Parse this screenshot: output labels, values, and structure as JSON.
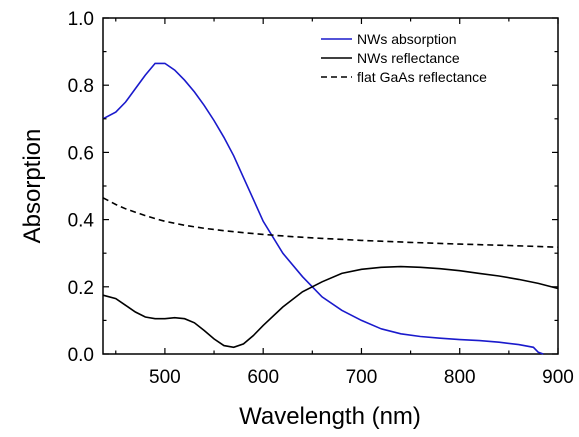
{
  "chart_data": {
    "type": "line",
    "title": "",
    "xlabel": "Wavelength (nm)",
    "ylabel": "Absorption",
    "xlim": [
      437,
      900
    ],
    "ylim": [
      0.0,
      1.0
    ],
    "xticks": [
      500,
      600,
      700,
      800,
      900
    ],
    "xtick_labels": [
      "500",
      "600",
      "700",
      "800",
      "900"
    ],
    "yticks": [
      0.0,
      0.2,
      0.4,
      0.6,
      0.8,
      1.0
    ],
    "ytick_labels": [
      "0.0",
      "0.2",
      "0.4",
      "0.6",
      "0.8",
      "1.0"
    ],
    "grid": false,
    "legend_position": "top-right",
    "series": [
      {
        "name": "NWs absorption",
        "color": "#1a1acc",
        "dash": "solid",
        "x": [
          437,
          450,
          460,
          470,
          480,
          490,
          500,
          510,
          520,
          530,
          540,
          550,
          560,
          570,
          580,
          590,
          600,
          620,
          640,
          660,
          680,
          700,
          720,
          740,
          760,
          780,
          800,
          820,
          840,
          860,
          875,
          880,
          885
        ],
        "y": [
          0.7,
          0.72,
          0.75,
          0.79,
          0.83,
          0.865,
          0.865,
          0.845,
          0.815,
          0.78,
          0.74,
          0.695,
          0.645,
          0.59,
          0.525,
          0.46,
          0.395,
          0.3,
          0.23,
          0.17,
          0.13,
          0.1,
          0.075,
          0.06,
          0.052,
          0.047,
          0.043,
          0.04,
          0.035,
          0.028,
          0.02,
          0.005,
          0.0
        ]
      },
      {
        "name": "NWs reflectance",
        "color": "#000000",
        "dash": "solid",
        "x": [
          437,
          450,
          460,
          470,
          480,
          490,
          500,
          510,
          520,
          530,
          540,
          550,
          560,
          570,
          580,
          590,
          600,
          620,
          640,
          660,
          680,
          700,
          720,
          740,
          760,
          780,
          800,
          820,
          840,
          860,
          880,
          900
        ],
        "y": [
          0.175,
          0.165,
          0.145,
          0.125,
          0.11,
          0.105,
          0.105,
          0.108,
          0.105,
          0.093,
          0.07,
          0.045,
          0.025,
          0.02,
          0.03,
          0.055,
          0.085,
          0.14,
          0.185,
          0.215,
          0.24,
          0.252,
          0.258,
          0.26,
          0.258,
          0.254,
          0.248,
          0.24,
          0.232,
          0.222,
          0.21,
          0.195
        ]
      },
      {
        "name": "flat GaAs reflectance",
        "color": "#000000",
        "dash": "dashed",
        "x": [
          437,
          450,
          460,
          470,
          480,
          490,
          500,
          520,
          540,
          560,
          580,
          600,
          630,
          660,
          700,
          750,
          800,
          850,
          900
        ],
        "y": [
          0.465,
          0.445,
          0.432,
          0.422,
          0.412,
          0.403,
          0.395,
          0.383,
          0.374,
          0.367,
          0.361,
          0.356,
          0.349,
          0.344,
          0.338,
          0.332,
          0.327,
          0.323,
          0.318
        ]
      }
    ]
  }
}
